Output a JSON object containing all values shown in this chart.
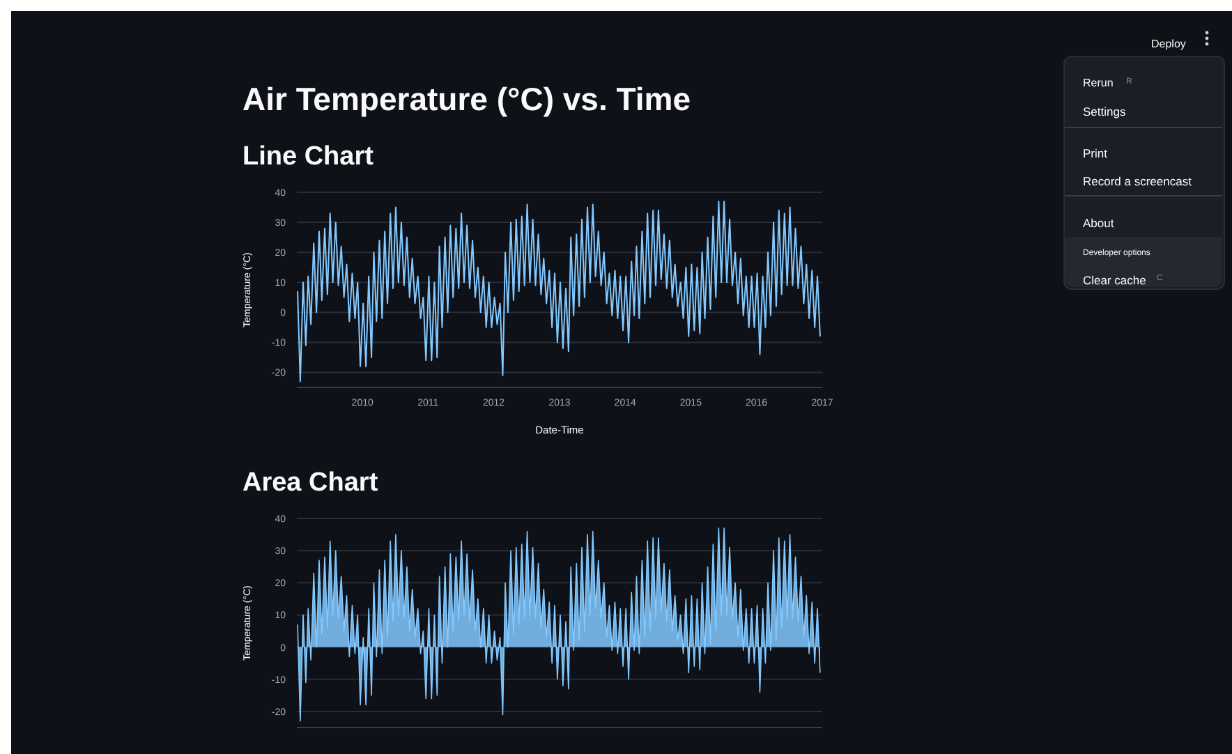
{
  "chart_data": [
    {
      "type": "other",
      "annotations": [
        "Deploy",
        "Rerun",
        "R",
        "Settings",
        "Print",
        "Record a screencast",
        "About",
        "Developer options",
        "Clear cache",
        "C"
      ]
    },
    {
      "type": "line",
      "title": "Air Temperature (°C) vs. Time",
      "subtitle": "Line Chart",
      "xlabel": "Date-Time",
      "ylabel": "Temperature (°C)",
      "x": [
        "2009-01-05",
        "2009-01-20",
        "2009-02-05",
        "2009-02-20",
        "2009-03-05",
        "2009-03-20",
        "2009-04-05",
        "2009-04-20",
        "2009-05-05",
        "2009-05-20",
        "2009-06-05",
        "2009-06-20",
        "2009-07-05",
        "2009-07-20",
        "2009-08-05",
        "2009-08-20",
        "2009-09-05",
        "2009-09-20",
        "2009-10-05",
        "2009-10-20",
        "2009-11-05",
        "2009-11-20",
        "2009-12-05",
        "2009-12-20",
        "2010-01-05",
        "2010-01-20",
        "2010-02-05",
        "2010-02-20",
        "2010-03-05",
        "2010-03-20",
        "2010-04-05",
        "2010-04-20",
        "2010-05-05",
        "2010-05-20",
        "2010-06-05",
        "2010-06-20",
        "2010-07-05",
        "2010-07-20",
        "2010-08-05",
        "2010-08-20",
        "2010-09-05",
        "2010-09-20",
        "2010-10-05",
        "2010-10-20",
        "2010-11-05",
        "2010-11-20",
        "2010-12-05",
        "2010-12-20",
        "2011-01-05",
        "2011-01-20",
        "2011-02-05",
        "2011-02-20",
        "2011-03-05",
        "2011-03-20",
        "2011-04-05",
        "2011-04-20",
        "2011-05-05",
        "2011-05-20",
        "2011-06-05",
        "2011-06-20",
        "2011-07-05",
        "2011-07-20",
        "2011-08-05",
        "2011-08-20",
        "2011-09-05",
        "2011-09-20",
        "2011-10-05",
        "2011-10-20",
        "2011-11-05",
        "2011-11-20",
        "2011-12-05",
        "2011-12-20",
        "2012-01-05",
        "2012-01-20",
        "2012-02-05",
        "2012-02-20",
        "2012-03-05",
        "2012-03-20",
        "2012-04-05",
        "2012-04-20",
        "2012-05-05",
        "2012-05-20",
        "2012-06-05",
        "2012-06-20",
        "2012-07-05",
        "2012-07-20",
        "2012-08-05",
        "2012-08-20",
        "2012-09-05",
        "2012-09-20",
        "2012-10-05",
        "2012-10-20",
        "2012-11-05",
        "2012-11-20",
        "2012-12-05",
        "2012-12-20",
        "2013-01-05",
        "2013-01-20",
        "2013-02-05",
        "2013-02-20",
        "2013-03-05",
        "2013-03-20",
        "2013-04-05",
        "2013-04-20",
        "2013-05-05",
        "2013-05-20",
        "2013-06-05",
        "2013-06-20",
        "2013-07-05",
        "2013-07-20",
        "2013-08-05",
        "2013-08-20",
        "2013-09-05",
        "2013-09-20",
        "2013-10-05",
        "2013-10-20",
        "2013-11-05",
        "2013-11-20",
        "2013-12-05",
        "2013-12-20",
        "2014-01-05",
        "2014-01-20",
        "2014-02-05",
        "2014-02-20",
        "2014-03-05",
        "2014-03-20",
        "2014-04-05",
        "2014-04-20",
        "2014-05-05",
        "2014-05-20",
        "2014-06-05",
        "2014-06-20",
        "2014-07-05",
        "2014-07-20",
        "2014-08-05",
        "2014-08-20",
        "2014-09-05",
        "2014-09-20",
        "2014-10-05",
        "2014-10-20",
        "2014-11-05",
        "2014-11-20",
        "2014-12-05",
        "2014-12-20",
        "2015-01-05",
        "2015-01-20",
        "2015-02-05",
        "2015-02-20",
        "2015-03-05",
        "2015-03-20",
        "2015-04-05",
        "2015-04-20",
        "2015-05-05",
        "2015-05-20",
        "2015-06-05",
        "2015-06-20",
        "2015-07-05",
        "2015-07-20",
        "2015-08-05",
        "2015-08-20",
        "2015-09-05",
        "2015-09-20",
        "2015-10-05",
        "2015-10-20",
        "2015-11-05",
        "2015-11-20",
        "2015-12-05",
        "2015-12-20",
        "2016-01-05",
        "2016-01-20",
        "2016-02-05",
        "2016-02-20",
        "2016-03-05",
        "2016-03-20",
        "2016-04-05",
        "2016-04-20",
        "2016-05-05",
        "2016-05-20",
        "2016-06-05",
        "2016-06-20",
        "2016-07-05",
        "2016-07-20",
        "2016-08-05",
        "2016-08-20",
        "2016-09-05",
        "2016-09-20",
        "2016-10-05",
        "2016-10-20",
        "2016-11-05",
        "2016-11-20",
        "2016-12-05",
        "2016-12-20"
      ],
      "series": [
        {
          "color": "#83c9ff",
          "values": [
            7,
            -23,
            10,
            -11,
            12,
            -4,
            23,
            0,
            27,
            4,
            28,
            6,
            33,
            10,
            30,
            9,
            22,
            5,
            16,
            -3,
            13,
            -2,
            10,
            -18,
            3,
            -18,
            12,
            -15,
            20,
            -3,
            24,
            -2,
            27,
            3,
            33,
            8,
            35,
            10,
            30,
            9,
            25,
            5,
            18,
            3,
            12,
            -2,
            5,
            -16,
            12,
            -16,
            10,
            -15,
            22,
            -5,
            25,
            0,
            29,
            5,
            28,
            8,
            33,
            10,
            29,
            8,
            24,
            5,
            15,
            0,
            12,
            -5,
            10,
            -5,
            5,
            -4,
            3,
            -21,
            20,
            0,
            30,
            4,
            31,
            7,
            32,
            9,
            36,
            10,
            31,
            9,
            26,
            6,
            18,
            3,
            14,
            -5,
            13,
            -10,
            10,
            -12,
            8,
            -13,
            25,
            -1,
            26,
            2,
            31,
            5,
            35,
            10,
            36,
            12,
            27,
            9,
            20,
            3,
            13,
            -1,
            14,
            -2,
            12,
            -6,
            12,
            -10,
            17,
            -1,
            22,
            -2,
            27,
            3,
            33,
            5,
            34,
            9,
            34,
            11,
            26,
            8,
            24,
            5,
            16,
            2,
            10,
            -2,
            15,
            -8,
            16,
            -6,
            15,
            -7,
            20,
            -2,
            25,
            1,
            32,
            5,
            37,
            10,
            37,
            10,
            31,
            9,
            20,
            3,
            18,
            -1,
            12,
            -5,
            12,
            -5,
            13,
            -14,
            12,
            -5,
            20,
            -1,
            30,
            2,
            34,
            6,
            33,
            9,
            35,
            9,
            28,
            8,
            22,
            3,
            16,
            -2,
            14,
            -5,
            12,
            -8
          ]
        }
      ],
      "xlim": [
        "2009-01",
        "2017-01"
      ],
      "xticks": [
        "2010",
        "2011",
        "2012",
        "2013",
        "2014",
        "2015",
        "2016",
        "2017"
      ],
      "ylim": [
        -25,
        40
      ],
      "yticks": [
        -20,
        -10,
        0,
        10,
        20,
        30,
        40
      ],
      "grid": "y"
    },
    {
      "type": "area",
      "title": "Area Chart",
      "ylabel": "Temperature (°C)",
      "x": [
        "2009-01-05",
        "2009-01-20",
        "2009-02-05",
        "2009-02-20",
        "2009-03-05",
        "2009-03-20",
        "2009-04-05",
        "2009-04-20",
        "2009-05-05",
        "2009-05-20",
        "2009-06-05",
        "2009-06-20",
        "2009-07-05",
        "2009-07-20",
        "2009-08-05",
        "2009-08-20",
        "2009-09-05",
        "2009-09-20",
        "2009-10-05",
        "2009-10-20",
        "2009-11-05",
        "2009-11-20",
        "2009-12-05",
        "2009-12-20",
        "2010-01-05",
        "2010-01-20",
        "2010-02-05",
        "2010-02-20",
        "2010-03-05",
        "2010-03-20",
        "2010-04-05",
        "2010-04-20",
        "2010-05-05",
        "2010-05-20",
        "2010-06-05",
        "2010-06-20",
        "2010-07-05",
        "2010-07-20",
        "2010-08-05",
        "2010-08-20",
        "2010-09-05",
        "2010-09-20",
        "2010-10-05",
        "2010-10-20",
        "2010-11-05",
        "2010-11-20",
        "2010-12-05",
        "2010-12-20",
        "2011-01-05",
        "2011-01-20",
        "2011-02-05",
        "2011-02-20",
        "2011-03-05",
        "2011-03-20",
        "2011-04-05",
        "2011-04-20",
        "2011-05-05",
        "2011-05-20",
        "2011-06-05",
        "2011-06-20",
        "2011-07-05",
        "2011-07-20",
        "2011-08-05",
        "2011-08-20",
        "2011-09-05",
        "2011-09-20",
        "2011-10-05",
        "2011-10-20",
        "2011-11-05",
        "2011-11-20",
        "2011-12-05",
        "2011-12-20",
        "2012-01-05",
        "2012-01-20",
        "2012-02-05",
        "2012-02-20",
        "2012-03-05",
        "2012-03-20",
        "2012-04-05",
        "2012-04-20",
        "2012-05-05",
        "2012-05-20",
        "2012-06-05",
        "2012-06-20",
        "2012-07-05",
        "2012-07-20",
        "2012-08-05",
        "2012-08-20",
        "2012-09-05",
        "2012-09-20",
        "2012-10-05",
        "2012-10-20",
        "2012-11-05",
        "2012-11-20",
        "2012-12-05",
        "2012-12-20",
        "2013-01-05",
        "2013-01-20",
        "2013-02-05",
        "2013-02-20",
        "2013-03-05",
        "2013-03-20",
        "2013-04-05",
        "2013-04-20",
        "2013-05-05",
        "2013-05-20",
        "2013-06-05",
        "2013-06-20",
        "2013-07-05",
        "2013-07-20",
        "2013-08-05",
        "2013-08-20",
        "2013-09-05",
        "2013-09-20",
        "2013-10-05",
        "2013-10-20",
        "2013-11-05",
        "2013-11-20",
        "2013-12-05",
        "2013-12-20",
        "2014-01-05",
        "2014-01-20",
        "2014-02-05",
        "2014-02-20",
        "2014-03-05",
        "2014-03-20",
        "2014-04-05",
        "2014-04-20",
        "2014-05-05",
        "2014-05-20",
        "2014-06-05",
        "2014-06-20",
        "2014-07-05",
        "2014-07-20",
        "2014-08-05",
        "2014-08-20",
        "2014-09-05",
        "2014-09-20",
        "2014-10-05",
        "2014-10-20",
        "2014-11-05",
        "2014-11-20",
        "2014-12-05",
        "2014-12-20",
        "2015-01-05",
        "2015-01-20",
        "2015-02-05",
        "2015-02-20",
        "2015-03-05",
        "2015-03-20",
        "2015-04-05",
        "2015-04-20",
        "2015-05-05",
        "2015-05-20",
        "2015-06-05",
        "2015-06-20",
        "2015-07-05",
        "2015-07-20",
        "2015-08-05",
        "2015-08-20",
        "2015-09-05",
        "2015-09-20",
        "2015-10-05",
        "2015-10-20",
        "2015-11-05",
        "2015-11-20",
        "2015-12-05",
        "2015-12-20",
        "2016-01-05",
        "2016-01-20",
        "2016-02-05",
        "2016-02-20",
        "2016-03-05",
        "2016-03-20",
        "2016-04-05",
        "2016-04-20",
        "2016-05-05",
        "2016-05-20",
        "2016-06-05",
        "2016-06-20",
        "2016-07-05",
        "2016-07-20",
        "2016-08-05",
        "2016-08-20",
        "2016-09-05",
        "2016-09-20",
        "2016-10-05",
        "2016-10-20",
        "2016-11-05",
        "2016-11-20",
        "2016-12-05",
        "2016-12-20"
      ],
      "series": [
        {
          "color": "#83c9ff",
          "values": [
            7,
            -23,
            10,
            -11,
            12,
            -4,
            23,
            0,
            27,
            4,
            28,
            6,
            33,
            10,
            30,
            9,
            22,
            5,
            16,
            -3,
            13,
            -2,
            10,
            -18,
            3,
            -18,
            12,
            -15,
            20,
            -3,
            24,
            -2,
            27,
            3,
            33,
            8,
            35,
            10,
            30,
            9,
            25,
            5,
            18,
            3,
            12,
            -2,
            5,
            -16,
            12,
            -16,
            10,
            -15,
            22,
            -5,
            25,
            0,
            29,
            5,
            28,
            8,
            33,
            10,
            29,
            8,
            24,
            5,
            15,
            0,
            12,
            -5,
            10,
            -5,
            5,
            -4,
            3,
            -21,
            20,
            0,
            30,
            4,
            31,
            7,
            32,
            9,
            36,
            10,
            31,
            9,
            26,
            6,
            18,
            3,
            14,
            -5,
            13,
            -10,
            10,
            -12,
            8,
            -13,
            25,
            -1,
            26,
            2,
            31,
            5,
            35,
            10,
            36,
            12,
            27,
            9,
            20,
            3,
            13,
            -1,
            14,
            -2,
            12,
            -6,
            12,
            -10,
            17,
            -1,
            22,
            -2,
            27,
            3,
            33,
            5,
            34,
            9,
            34,
            11,
            26,
            8,
            24,
            5,
            16,
            2,
            10,
            -2,
            15,
            -8,
            16,
            -6,
            15,
            -7,
            20,
            -2,
            25,
            1,
            32,
            5,
            37,
            10,
            37,
            10,
            31,
            9,
            20,
            3,
            18,
            -1,
            12,
            -5,
            12,
            -5,
            13,
            -14,
            12,
            -5,
            20,
            -1,
            30,
            2,
            34,
            6,
            33,
            9,
            35,
            9,
            28,
            8,
            22,
            3,
            16,
            -2,
            14,
            -5,
            12,
            -8
          ]
        }
      ],
      "xlim": [
        "2009-01",
        "2017-01"
      ],
      "ylim": [
        -25,
        40
      ],
      "yticks": [
        -20,
        -10,
        0,
        10,
        20,
        30,
        40
      ],
      "grid": "y",
      "tick_labels": "y"
    }
  ]
}
